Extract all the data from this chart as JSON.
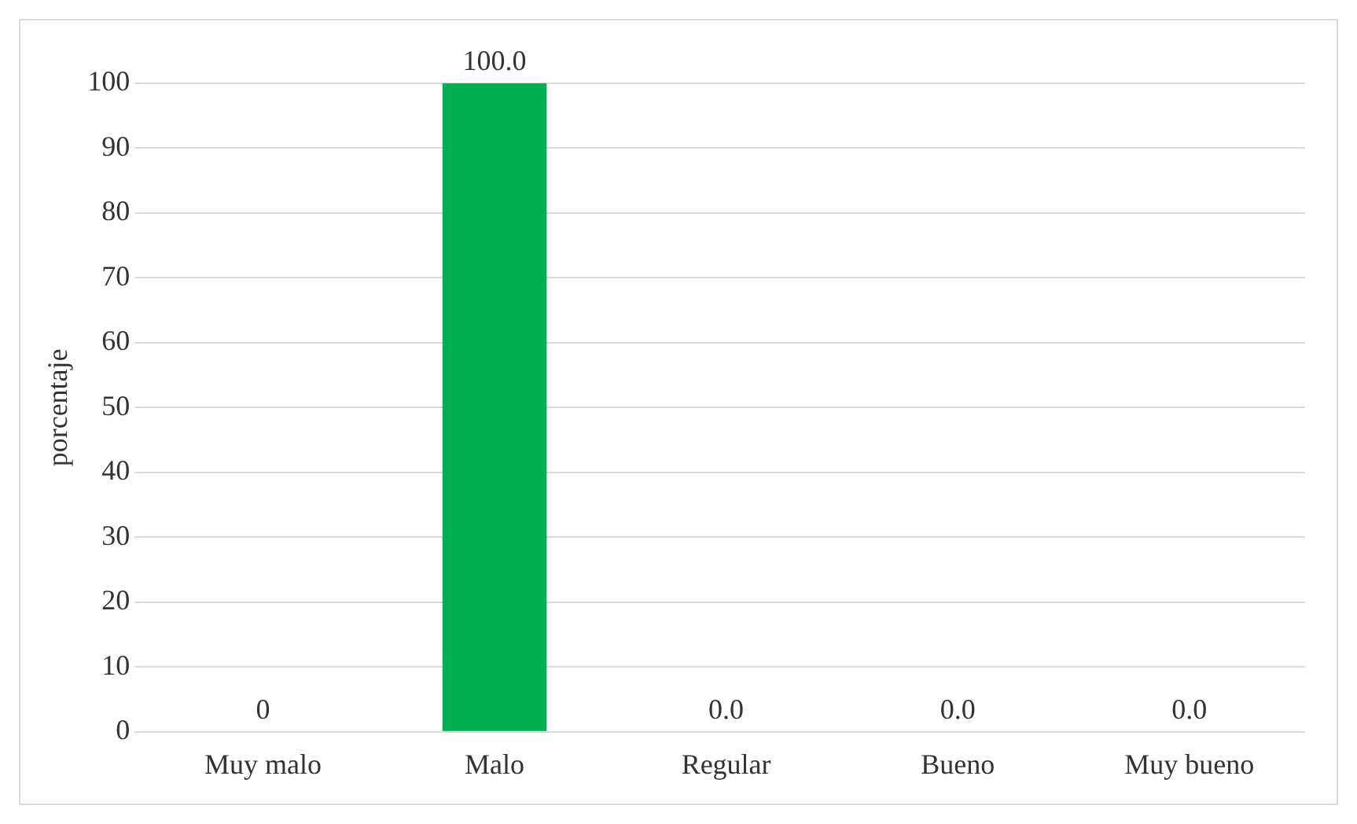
{
  "chart_data": {
    "type": "bar",
    "ylabel": "porcentaje",
    "categories": [
      "Muy malo",
      "Malo",
      "Regular",
      "Bueno",
      "Muy bueno"
    ],
    "values": [
      0,
      100,
      0,
      0,
      0
    ],
    "colors": [
      "#a50021",
      "#00b050",
      "#4472c4",
      "#c55a11",
      "#7030a0"
    ],
    "value_labels": [
      "0",
      "100.0",
      "0.0",
      "0.0",
      "0.0"
    ],
    "ylim": [
      0,
      100
    ],
    "yticks": [
      0,
      10,
      20,
      30,
      40,
      50,
      60,
      70,
      80,
      90,
      100
    ],
    "grid": "y",
    "legend": false
  }
}
